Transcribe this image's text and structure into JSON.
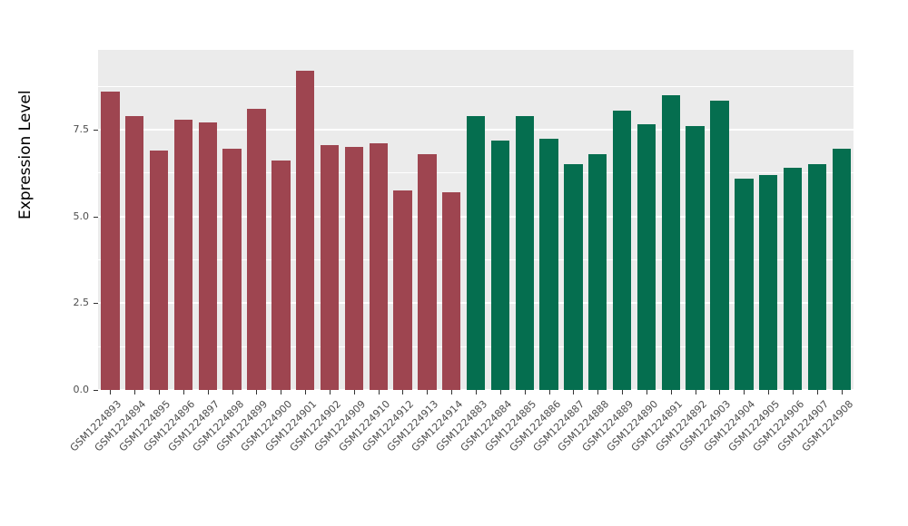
{
  "chart_data": {
    "type": "bar",
    "title": "",
    "xlabel": "",
    "ylabel": "Expression Level",
    "ylim": [
      0,
      9.8
    ],
    "grid": true,
    "legend": "none",
    "y_ticks": [
      {
        "value": 0.0,
        "label": "0.0"
      },
      {
        "value": 2.5,
        "label": "2.5"
      },
      {
        "value": 5.0,
        "label": "5.0"
      },
      {
        "value": 7.5,
        "label": "7.5"
      }
    ],
    "y_minor_ticks": [
      1.25,
      3.75,
      6.25,
      8.75
    ],
    "group_colors": {
      "groupA": "#9e4550",
      "groupB": "#056e4f"
    },
    "categories": [
      "GSM1224893",
      "GSM1224894",
      "GSM1224895",
      "GSM1224896",
      "GSM1224897",
      "GSM1224898",
      "GSM1224899",
      "GSM1224900",
      "GSM1224901",
      "GSM1224902",
      "GSM1224909",
      "GSM1224910",
      "GSM1224912",
      "GSM1224913",
      "GSM1224914",
      "GSM1224883",
      "GSM1224884",
      "GSM1224885",
      "GSM1224886",
      "GSM1224887",
      "GSM1224888",
      "GSM1224889",
      "GSM1224890",
      "GSM1224891",
      "GSM1224892",
      "GSM1224903",
      "GSM1224904",
      "GSM1224905",
      "GSM1224906",
      "GSM1224907",
      "GSM1224908"
    ],
    "values": [
      8.6,
      7.9,
      6.9,
      7.8,
      7.7,
      6.95,
      8.1,
      6.6,
      9.2,
      7.05,
      7.0,
      7.1,
      5.75,
      6.8,
      5.7,
      7.9,
      7.2,
      7.9,
      7.25,
      6.5,
      6.8,
      8.05,
      7.65,
      8.5,
      7.6,
      8.35,
      6.1,
      6.2,
      6.4,
      6.5,
      6.95
    ],
    "groups": [
      "groupA",
      "groupA",
      "groupA",
      "groupA",
      "groupA",
      "groupA",
      "groupA",
      "groupA",
      "groupA",
      "groupA",
      "groupA",
      "groupA",
      "groupA",
      "groupA",
      "groupA",
      "groupB",
      "groupB",
      "groupB",
      "groupB",
      "groupB",
      "groupB",
      "groupB",
      "groupB",
      "groupB",
      "groupB",
      "groupB",
      "groupB",
      "groupB",
      "groupB",
      "groupB",
      "groupB"
    ]
  }
}
